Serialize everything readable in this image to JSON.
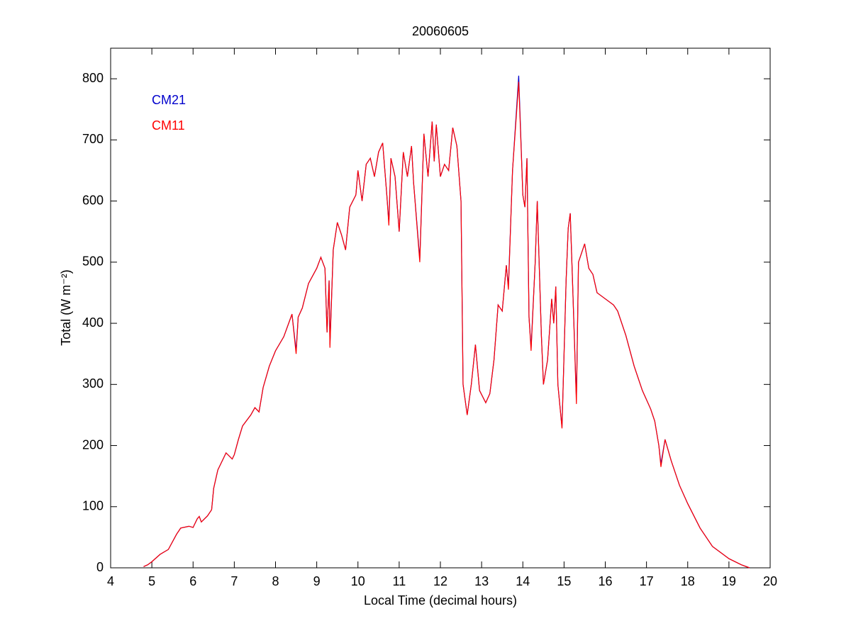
{
  "chart_data": {
    "type": "line",
    "title": "20060605",
    "x_label": "Local Time (decimal hours)",
    "y_label": "Total (W m⁻²)",
    "x": [
      4.8,
      4.9,
      5.0,
      5.2,
      5.4,
      5.6,
      5.7,
      5.9,
      6.0,
      6.1,
      6.15,
      6.2,
      6.35,
      6.45,
      6.5,
      6.6,
      6.8,
      6.95,
      7.0,
      7.1,
      7.2,
      7.4,
      7.5,
      7.6,
      7.7,
      7.85,
      8.0,
      8.2,
      8.4,
      8.5,
      8.55,
      8.65,
      8.8,
      9.0,
      9.1,
      9.2,
      9.25,
      9.3,
      9.32,
      9.4,
      9.5,
      9.6,
      9.7,
      9.8,
      9.95,
      10.0,
      10.1,
      10.2,
      10.3,
      10.4,
      10.5,
      10.6,
      10.7,
      10.75,
      10.8,
      10.9,
      11.0,
      11.1,
      11.2,
      11.3,
      11.35,
      11.5,
      11.6,
      11.7,
      11.8,
      11.85,
      11.9,
      12.0,
      12.1,
      12.2,
      12.3,
      12.4,
      12.5,
      12.55,
      12.65,
      12.75,
      12.85,
      12.95,
      13.1,
      13.2,
      13.3,
      13.4,
      13.5,
      13.6,
      13.65,
      13.75,
      13.9,
      14.0,
      14.05,
      14.1,
      14.15,
      14.2,
      14.3,
      14.35,
      14.45,
      14.5,
      14.6,
      14.7,
      14.75,
      14.8,
      14.85,
      14.95,
      15.05,
      15.1,
      15.15,
      15.2,
      15.3,
      15.35,
      15.4,
      15.5,
      15.6,
      15.7,
      15.8,
      16.0,
      16.2,
      16.3,
      16.5,
      16.7,
      16.9,
      17.1,
      17.2,
      17.3,
      17.35,
      17.45,
      17.6,
      17.8,
      18.0,
      18.3,
      18.6,
      19.0,
      19.3,
      19.5
    ],
    "series": [
      {
        "name": "CM21",
        "color": "#0000cc",
        "values": [
          2,
          5,
          10,
          22,
          30,
          55,
          65,
          68,
          66,
          80,
          84,
          75,
          85,
          95,
          130,
          160,
          188,
          178,
          185,
          210,
          232,
          250,
          262,
          255,
          295,
          330,
          355,
          378,
          415,
          355,
          410,
          425,
          465,
          490,
          508,
          490,
          385,
          470,
          365,
          520,
          565,
          545,
          520,
          590,
          610,
          650,
          600,
          660,
          670,
          640,
          680,
          695,
          610,
          565,
          670,
          640,
          550,
          680,
          640,
          690,
          630,
          505,
          710,
          640,
          730,
          665,
          725,
          640,
          660,
          650,
          720,
          690,
          600,
          300,
          250,
          300,
          365,
          290,
          270,
          285,
          340,
          430,
          420,
          495,
          460,
          650,
          805,
          610,
          590,
          670,
          410,
          360,
          500,
          600,
          380,
          300,
          340,
          440,
          400,
          460,
          300,
          230,
          470,
          555,
          580,
          480,
          275,
          500,
          510,
          530,
          490,
          480,
          450,
          440,
          430,
          420,
          380,
          330,
          290,
          260,
          240,
          200,
          170,
          210,
          175,
          135,
          105,
          65,
          35,
          15,
          5,
          0
        ]
      },
      {
        "name": "CM11",
        "color": "#ff0000",
        "values": [
          2,
          5,
          10,
          22,
          30,
          55,
          65,
          68,
          66,
          80,
          84,
          75,
          85,
          95,
          130,
          160,
          188,
          178,
          185,
          210,
          232,
          250,
          262,
          255,
          295,
          330,
          355,
          378,
          415,
          350,
          410,
          425,
          465,
          490,
          508,
          490,
          385,
          470,
          360,
          520,
          565,
          545,
          520,
          590,
          610,
          650,
          600,
          660,
          670,
          640,
          680,
          695,
          610,
          560,
          670,
          640,
          550,
          680,
          640,
          690,
          630,
          500,
          710,
          640,
          730,
          665,
          725,
          640,
          660,
          650,
          720,
          690,
          600,
          300,
          250,
          300,
          365,
          290,
          270,
          285,
          340,
          430,
          420,
          495,
          455,
          650,
          795,
          610,
          590,
          670,
          410,
          355,
          500,
          600,
          380,
          300,
          340,
          440,
          400,
          460,
          300,
          228,
          470,
          555,
          580,
          480,
          268,
          500,
          510,
          530,
          490,
          480,
          450,
          440,
          430,
          420,
          380,
          330,
          290,
          260,
          240,
          200,
          165,
          210,
          175,
          135,
          105,
          65,
          35,
          15,
          5,
          0
        ]
      }
    ],
    "xlim": [
      4,
      20
    ],
    "xticks": [
      4,
      5,
      6,
      7,
      8,
      9,
      10,
      11,
      12,
      13,
      14,
      15,
      16,
      17,
      18,
      19,
      20
    ],
    "ylim": [
      0,
      850
    ],
    "yticks": [
      0,
      100,
      200,
      300,
      400,
      500,
      600,
      700,
      800
    ],
    "grid": false,
    "legend": "upper left"
  }
}
